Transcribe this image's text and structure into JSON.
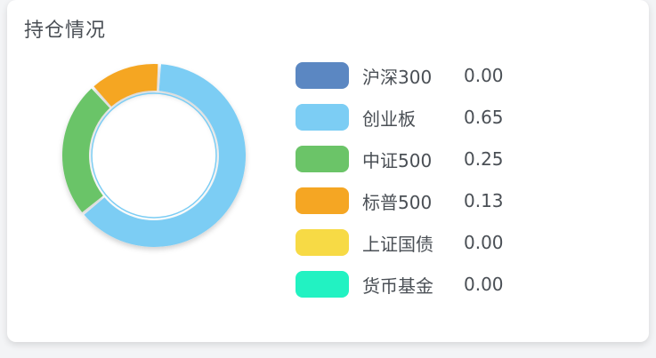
{
  "card": {
    "title": "持仓情况"
  },
  "chart_data": {
    "type": "pie",
    "categories": [
      "沪深300",
      "创业板",
      "中证500",
      "标普500",
      "上证国债",
      "货币基金"
    ],
    "values": [
      0.0,
      0.65,
      0.25,
      0.13,
      0.0,
      0.0
    ],
    "value_labels": [
      "0.00",
      "0.65",
      "0.25",
      "0.13",
      "0.00",
      "0.00"
    ],
    "colors": [
      "#5b87c2",
      "#7ccdf4",
      "#6bc468",
      "#f5a623",
      "#f7da45",
      "#22f2c2"
    ],
    "legend_placement": "right",
    "style": "donut"
  }
}
